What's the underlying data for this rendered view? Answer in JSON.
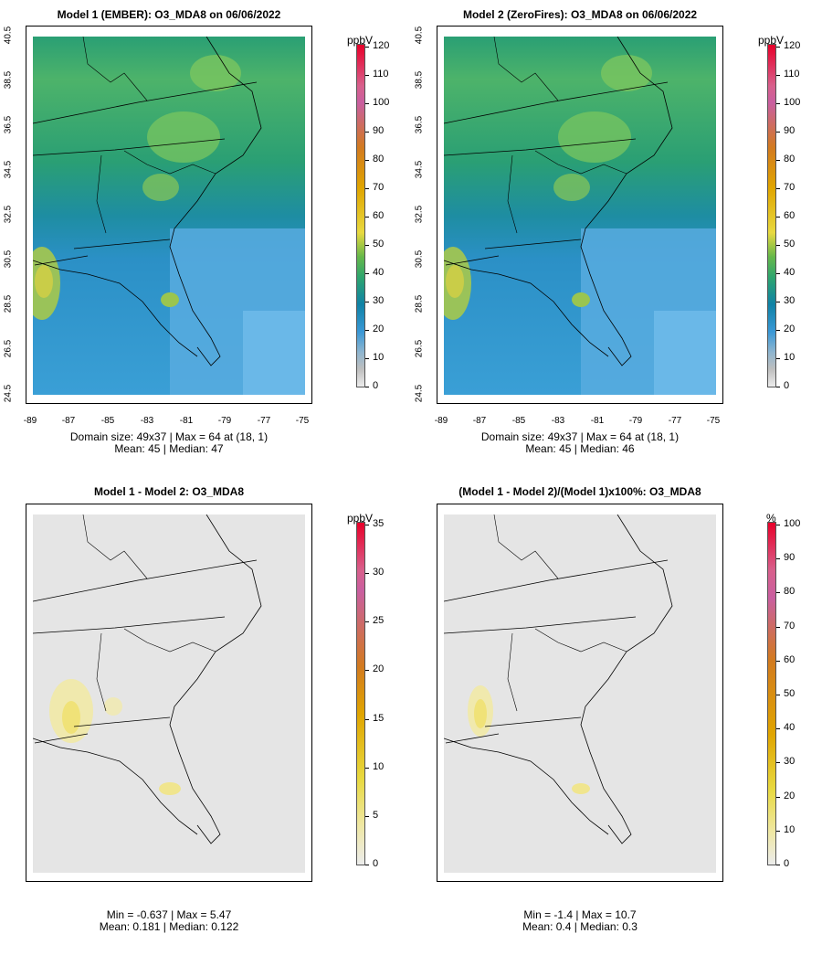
{
  "panels": [
    {
      "title": "Model 1 (EMBER): O3_MDA8 on 06/06/2022",
      "stats_line1": "Domain size: 49x37 | Max = 64 at (18, 1)",
      "stats_line2": "Mean: 45 |  Median: 47",
      "unit": "ppbV",
      "colorbar_ticks": [
        "120",
        "110",
        "100",
        "90",
        "80",
        "70",
        "60",
        "50",
        "40",
        "30",
        "20",
        "10",
        "0"
      ],
      "x_ticks": [
        "-89",
        "-87",
        "-85",
        "-83",
        "-81",
        "-79",
        "-77",
        "-75"
      ],
      "y_ticks": [
        "40.5",
        "38.5",
        "36.5",
        "34.5",
        "32.5",
        "30.5",
        "28.5",
        "26.5",
        "24.5"
      ]
    },
    {
      "title": "Model 2 (ZeroFires): O3_MDA8 on 06/06/2022",
      "stats_line1": "Domain size: 49x37 | Max = 64 at (18, 1)",
      "stats_line2": "Mean: 45 |  Median: 46",
      "unit": "ppbV",
      "colorbar_ticks": [
        "120",
        "110",
        "100",
        "90",
        "80",
        "70",
        "60",
        "50",
        "40",
        "30",
        "20",
        "10",
        "0"
      ],
      "x_ticks": [
        "-89",
        "-87",
        "-85",
        "-83",
        "-81",
        "-79",
        "-77",
        "-75"
      ],
      "y_ticks": [
        "40.5",
        "38.5",
        "36.5",
        "34.5",
        "32.5",
        "30.5",
        "28.5",
        "26.5",
        "24.5"
      ]
    },
    {
      "title": "Model 1 - Model 2: O3_MDA8",
      "stats_line1": "Min = -0.637 | Max = 5.47",
      "stats_line2": "Mean: 0.181 |  Median: 0.122",
      "unit": "ppbV",
      "colorbar_ticks": [
        "35",
        "30",
        "25",
        "20",
        "15",
        "10",
        "5",
        "0"
      ]
    },
    {
      "title": "(Model 1 - Model 2)/(Model 1)x100%: O3_MDA8",
      "stats_line1": "Min = -1.4 | Max = 10.7",
      "stats_line2": "Mean: 0.4 |  Median: 0.3",
      "unit": "%",
      "colorbar_ticks": [
        "100",
        "90",
        "80",
        "70",
        "60",
        "50",
        "40",
        "30",
        "20",
        "10",
        "0"
      ]
    }
  ],
  "colors": {
    "high": "#7cc35a",
    "mid": "#2aa37a",
    "low": "#1a7fb8",
    "ocean": "#5aade3",
    "diff_bg": "#e5e5e5",
    "hotspot": "#f2e68c"
  }
}
